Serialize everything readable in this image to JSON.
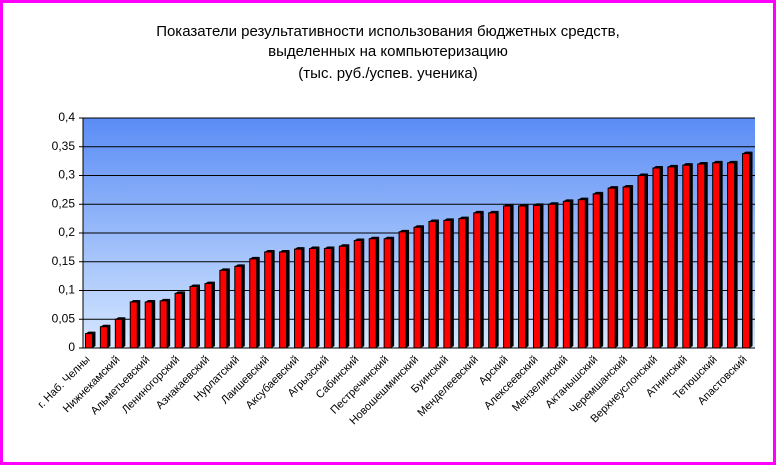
{
  "chart_data": {
    "type": "bar",
    "title": [
      "Показатели результативности использования бюджетных средств,",
      "выделенных на компьютеризацию",
      "(тыс. руб./успев. ученика)"
    ],
    "categories": [
      "г. Наб. Челны",
      null,
      "Нижнекамский",
      null,
      "Альметьевский",
      null,
      "Лениногорский",
      null,
      "Азнакаевский",
      null,
      "Нурлатский",
      null,
      "Лаишевский",
      null,
      "Аксубаевский",
      null,
      "Агрызский",
      null,
      "Сабинский",
      null,
      "Пестречинский",
      null,
      "Новошешминский",
      null,
      "Буинский",
      null,
      "Менделеевский",
      null,
      "Арский",
      null,
      "Алексеевский",
      null,
      "Мензелинский",
      null,
      "Актанышский",
      null,
      "Черемшанский",
      null,
      "Верхнеуслонский",
      null,
      "Атнинский",
      null,
      "Тетюшский",
      null,
      "Апастовский"
    ],
    "values": [
      0.025,
      0.037,
      0.05,
      0.08,
      0.08,
      0.082,
      0.095,
      0.107,
      0.112,
      0.135,
      0.142,
      0.155,
      0.167,
      0.167,
      0.172,
      0.173,
      0.173,
      0.177,
      0.187,
      0.19,
      0.19,
      0.202,
      0.21,
      0.22,
      0.222,
      0.225,
      0.235,
      0.235,
      0.247,
      0.247,
      0.248,
      0.25,
      0.255,
      0.258,
      0.268,
      0.278,
      0.28,
      0.3,
      0.313,
      0.315,
      0.318,
      0.32,
      0.322,
      0.322,
      0.338
    ],
    "color": "#ff0000",
    "ylim": [
      0,
      0.4
    ],
    "yticks": [
      0,
      {
        "value": 0.05,
        "label": "0,05"
      },
      {
        "value": 0.1,
        "label": "0,1"
      },
      {
        "value": 0.15,
        "label": "0,15"
      },
      {
        "value": 0.2,
        "label": "0,2"
      },
      {
        "value": 0.25,
        "label": "0,25"
      },
      {
        "value": 0.3,
        "label": "0,3"
      },
      {
        "value": 0.35,
        "label": "0,35"
      },
      {
        "value": 0.4,
        "label": "0,4"
      }
    ],
    "grid": true
  }
}
